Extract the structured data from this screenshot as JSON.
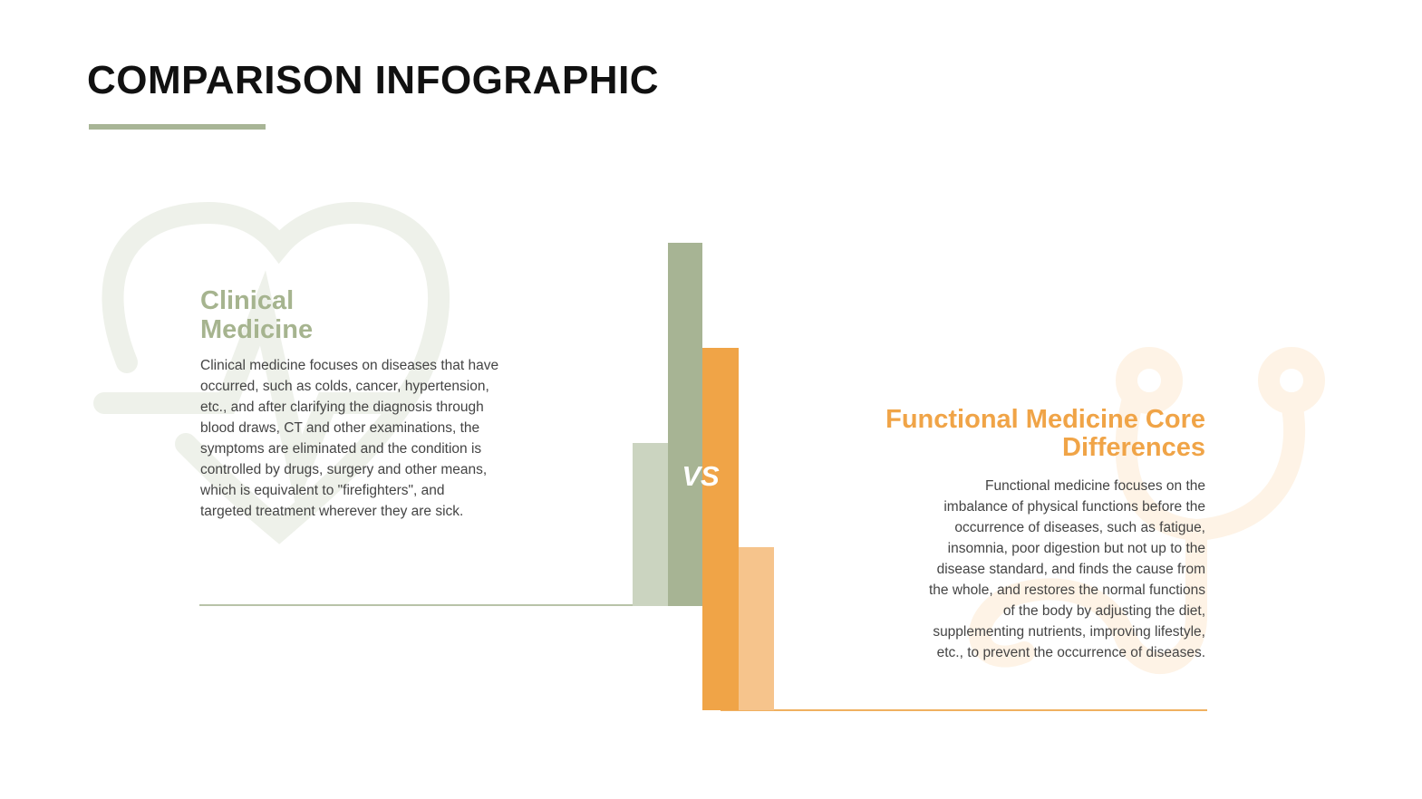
{
  "header": {
    "title": "COMPARISON INFOGRAPHIC"
  },
  "left": {
    "heading": "Clinical Medicine",
    "body": "Clinical medicine focuses on diseases that have occurred, such as colds, cancer, hypertension, etc., and after clarifying the diagnosis through blood draws, CT and other examinations, the symptoms are eliminated and the condition is controlled by drugs, surgery and other means, which is equivalent to \"firefighters\", and targeted treatment wherever they are sick."
  },
  "center": {
    "label": "VS"
  },
  "right": {
    "heading": "Functional Medicine Core Differences",
    "body": "Functional medicine focuses on the imbalance of physical functions before the occurrence of diseases, such as fatigue, insomnia, poor digestion but not up to the disease standard, and finds the cause from the whole, and restores the normal functions of the body by adjusting the diet, supplementing nutrients, improving lifestyle, etc., to prevent the occurrence of diseases."
  }
}
